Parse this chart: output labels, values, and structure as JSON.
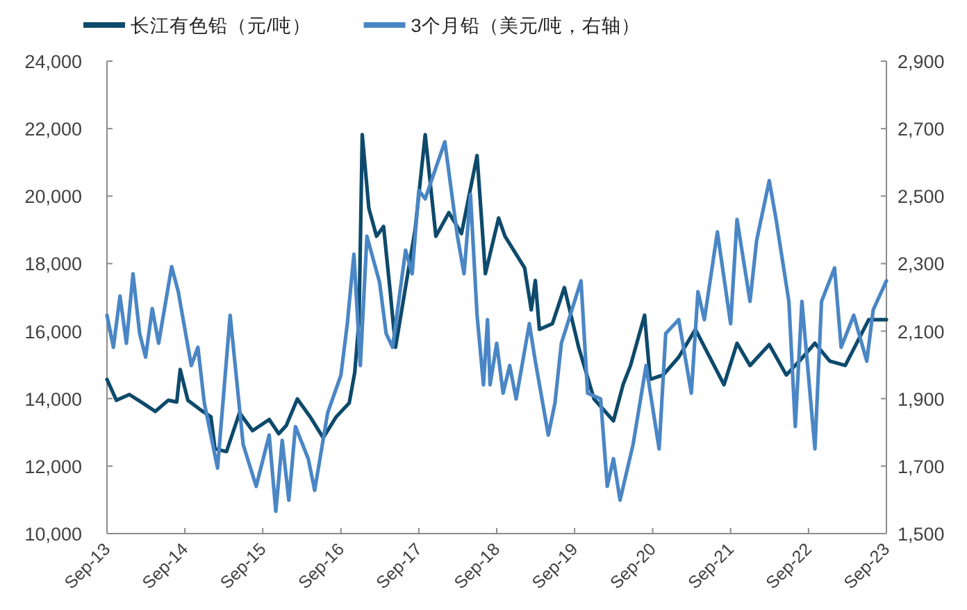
{
  "chart_data": {
    "type": "line",
    "legend": "top",
    "grid": false,
    "marker": "none",
    "line_style": "solid",
    "xlim": [
      "2013-09-01",
      "2023-09-01"
    ],
    "xticks": [
      {
        "value": "2013-09-01",
        "label": "Sep-13"
      },
      {
        "value": "2014-09-01",
        "label": "Sep-14"
      },
      {
        "value": "2015-09-01",
        "label": "Sep-15"
      },
      {
        "value": "2016-09-01",
        "label": "Sep-16"
      },
      {
        "value": "2017-09-01",
        "label": "Sep-17"
      },
      {
        "value": "2018-09-01",
        "label": "Sep-18"
      },
      {
        "value": "2019-09-01",
        "label": "Sep-19"
      },
      {
        "value": "2020-09-01",
        "label": "Sep-20"
      },
      {
        "value": "2021-09-01",
        "label": "Sep-21"
      },
      {
        "value": "2022-09-01",
        "label": "Sep-22"
      },
      {
        "value": "2023-09-01",
        "label": "Sep-23"
      }
    ],
    "ylim": [
      10000,
      24000
    ],
    "yticks": [
      {
        "value": 10000,
        "label": "10,000"
      },
      {
        "value": 12000,
        "label": "12,000"
      },
      {
        "value": 14000,
        "label": "14,000"
      },
      {
        "value": 16000,
        "label": "16,000"
      },
      {
        "value": 18000,
        "label": "18,000"
      },
      {
        "value": 20000,
        "label": "20,000"
      },
      {
        "value": 22000,
        "label": "22,000"
      },
      {
        "value": 24000,
        "label": "24,000"
      }
    ],
    "y2lim": [
      1500,
      2900
    ],
    "y2ticks": [
      {
        "value": 1500,
        "label": "1,500"
      },
      {
        "value": 1700,
        "label": "1,700"
      },
      {
        "value": 1900,
        "label": "1,900"
      },
      {
        "value": 2100,
        "label": "2,100"
      },
      {
        "value": 2300,
        "label": "2,300"
      },
      {
        "value": 2500,
        "label": "2,500"
      },
      {
        "value": 2700,
        "label": "2,700"
      },
      {
        "value": 2900,
        "label": "2,900"
      }
    ],
    "series": [
      {
        "name": "长江有色铅（元/吨）",
        "color": "#0d4a6b",
        "x": [
          "2013-09-01",
          "2013-10-15",
          "2013-12-15",
          "2014-02-15",
          "2014-04-15",
          "2014-06-15",
          "2014-07-25",
          "2014-08-10",
          "2014-09-15",
          "2014-11-15",
          "2015-01-01",
          "2015-01-20",
          "2015-03-15",
          "2015-05-15",
          "2015-07-15",
          "2015-10-01",
          "2015-11-15",
          "2015-12-20",
          "2016-02-10",
          "2016-04-10",
          "2016-06-10",
          "2016-08-10",
          "2016-10-10",
          "2016-11-05",
          "2016-11-25",
          "2016-12-10",
          "2017-01-10",
          "2017-02-15",
          "2017-03-20",
          "2017-04-20",
          "2017-05-15",
          "2017-08-15",
          "2017-10-01",
          "2017-11-20",
          "2018-01-20",
          "2018-03-20",
          "2018-06-01",
          "2018-07-10",
          "2018-09-10",
          "2018-10-10",
          "2019-01-10",
          "2019-02-10",
          "2019-03-01",
          "2019-03-20",
          "2019-05-20",
          "2019-07-15",
          "2019-09-20",
          "2019-12-01",
          "2020-03-01",
          "2020-04-15",
          "2020-05-20",
          "2020-07-25",
          "2020-08-20",
          "2020-10-20",
          "2021-01-01",
          "2021-03-20",
          "2021-08-01",
          "2021-10-01",
          "2021-12-01",
          "2022-03-01",
          "2022-05-20",
          "2022-07-20",
          "2022-10-01",
          "2022-12-10",
          "2023-02-20",
          "2023-06-10",
          "2023-09-01"
        ],
        "values": [
          14570,
          13950,
          14120,
          13870,
          13620,
          13950,
          13900,
          14860,
          13950,
          13660,
          13460,
          12510,
          12430,
          13580,
          13050,
          13380,
          12960,
          13200,
          13990,
          13460,
          12840,
          13460,
          13870,
          14780,
          16340,
          21820,
          19640,
          18810,
          19100,
          17170,
          15520,
          19020,
          21820,
          18810,
          19510,
          18890,
          21200,
          17700,
          19350,
          18810,
          17870,
          16630,
          17500,
          16050,
          16220,
          17290,
          15520,
          13990,
          13340,
          14410,
          14980,
          16470,
          14570,
          14700,
          15230,
          16050,
          14410,
          15640,
          14980,
          15600,
          14700,
          15110,
          15640,
          15110,
          14980,
          16340,
          16340
        ]
      },
      {
        "name": "3个月铅（美元/吨，右轴）",
        "color": "#4a86c5",
        "axis": "y2",
        "x": [
          "2013-09-01",
          "2013-10-01",
          "2013-11-01",
          "2013-12-01",
          "2014-01-01",
          "2014-02-01",
          "2014-03-01",
          "2014-04-01",
          "2014-05-01",
          "2014-07-01",
          "2014-08-01",
          "2014-10-01",
          "2014-11-01",
          "2014-12-01",
          "2015-02-01",
          "2015-04-01",
          "2015-06-01",
          "2015-08-01",
          "2015-10-01",
          "2015-11-01",
          "2015-12-01",
          "2016-01-01",
          "2016-02-01",
          "2016-04-01",
          "2016-05-01",
          "2016-07-01",
          "2016-09-01",
          "2016-10-01",
          "2016-11-01",
          "2016-12-01",
          "2017-01-01",
          "2017-03-01",
          "2017-04-01",
          "2017-05-01",
          "2017-07-01",
          "2017-08-01",
          "2017-09-01",
          "2017-10-01",
          "2018-01-01",
          "2018-03-01",
          "2018-04-01",
          "2018-05-01",
          "2018-06-01",
          "2018-07-01",
          "2018-07-20",
          "2018-08-01",
          "2018-09-01",
          "2018-10-01",
          "2018-11-01",
          "2018-12-01",
          "2019-02-01",
          "2019-03-01",
          "2019-05-01",
          "2019-06-01",
          "2019-07-01",
          "2019-10-01",
          "2019-11-01",
          "2020-01-01",
          "2020-02-01",
          "2020-03-01",
          "2020-04-01",
          "2020-06-01",
          "2020-08-01",
          "2020-10-01",
          "2020-11-01",
          "2021-01-01",
          "2021-03-01",
          "2021-04-01",
          "2021-05-01",
          "2021-07-01",
          "2021-09-01",
          "2021-10-01",
          "2021-12-01",
          "2022-01-01",
          "2022-03-01",
          "2022-04-01",
          "2022-06-01",
          "2022-07-01",
          "2022-08-01",
          "2022-10-01",
          "2022-11-01",
          "2023-01-01",
          "2023-02-01",
          "2023-04-01",
          "2023-06-01",
          "2023-07-01",
          "2023-09-01"
        ],
        "values": [
          2147,
          2052,
          2204,
          2064,
          2270,
          2093,
          2023,
          2167,
          2064,
          2291,
          2217,
          1998,
          2052,
          1887,
          1694,
          2147,
          1764,
          1640,
          1792,
          1566,
          1776,
          1599,
          1817,
          1722,
          1628,
          1858,
          1969,
          2122,
          2328,
          1998,
          2381,
          2245,
          2093,
          2052,
          2340,
          2270,
          2517,
          2492,
          2661,
          2381,
          2270,
          2505,
          2147,
          1941,
          2134,
          1941,
          2064,
          1916,
          1998,
          1899,
          2122,
          2011,
          1792,
          1887,
          2064,
          2249,
          1916,
          1899,
          1640,
          1722,
          1599,
          1764,
          1998,
          1751,
          2093,
          2134,
          1916,
          2217,
          2134,
          2394,
          2122,
          2431,
          2188,
          2369,
          2546,
          2435,
          2188,
          1817,
          2188,
          1751,
          2188,
          2287,
          2052,
          2147,
          2011,
          2163,
          2249
        ]
      }
    ]
  }
}
